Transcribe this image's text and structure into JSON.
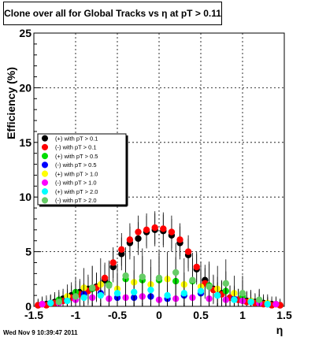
{
  "chart_data": {
    "type": "scatter",
    "title": "Clone  over all for Global Tracks vs η at pT > 0.11",
    "xlabel": "η",
    "ylabel": "Efficiency (%)",
    "xlim": [
      -1.5,
      1.5
    ],
    "ylim": [
      0,
      25
    ],
    "x_ticks": [
      "-1.5",
      "-1",
      "-0.5",
      "0",
      "0.5",
      "1",
      "1.5"
    ],
    "y_ticks": [
      "0",
      "5",
      "10",
      "15",
      "20",
      "25"
    ],
    "grid": true,
    "legend_position": "left",
    "series": [
      {
        "name": "(+) with pT > 0.1",
        "color": "#000000",
        "x": [
          -1.45,
          -1.35,
          -1.25,
          -1.15,
          -1.05,
          -0.95,
          -0.85,
          -0.75,
          -0.65,
          -0.55,
          -0.45,
          -0.35,
          -0.25,
          -0.15,
          -0.05,
          0.05,
          0.15,
          0.25,
          0.35,
          0.45,
          0.55,
          0.65,
          0.75,
          0.85,
          0.95,
          1.05,
          1.15,
          1.25,
          1.35,
          1.45
        ],
        "y": [
          0.1,
          0.2,
          0.4,
          0.7,
          1.0,
          1.3,
          1.6,
          1.8,
          2.4,
          3.6,
          4.8,
          5.8,
          6.2,
          6.8,
          7.0,
          6.9,
          6.5,
          5.8,
          4.7,
          3.4,
          2.4,
          1.6,
          1.2,
          0.8,
          0.6,
          0.5,
          0.4,
          0.3,
          0.2,
          0.1
        ],
        "err": [
          0.6,
          0.8,
          0.9,
          0.9,
          1.2,
          1.2,
          1.3,
          1.3,
          1.4,
          1.4,
          1.5,
          1.5,
          1.5,
          1.5,
          1.5,
          1.5,
          1.5,
          1.5,
          1.5,
          1.4,
          1.4,
          1.3,
          1.2,
          1.1,
          1.0,
          0.9,
          0.8,
          0.8,
          0.7,
          0.6
        ]
      },
      {
        "name": "(-) with pT > 0.1",
        "color": "#ff0000",
        "x": [
          -1.45,
          -1.35,
          -1.25,
          -1.15,
          -1.05,
          -0.95,
          -0.85,
          -0.75,
          -0.65,
          -0.55,
          -0.45,
          -0.35,
          -0.25,
          -0.15,
          -0.05,
          0.05,
          0.15,
          0.25,
          0.35,
          0.45,
          0.55,
          0.65,
          0.75,
          0.85,
          0.95,
          1.05,
          1.15,
          1.25,
          1.35,
          1.45
        ],
        "y": [
          0.1,
          0.1,
          0.3,
          0.5,
          0.8,
          1.1,
          1.4,
          1.7,
          2.6,
          4.0,
          5.2,
          6.1,
          6.8,
          7.0,
          7.2,
          7.1,
          6.8,
          6.1,
          5.0,
          3.6,
          2.1,
          1.5,
          1.1,
          0.8,
          0.6,
          0.4,
          0.3,
          0.2,
          0.1,
          0.1
        ],
        "err": [
          0.5,
          0.7,
          0.8,
          0.9,
          1.1,
          1.2,
          1.3,
          1.3,
          1.4,
          1.4,
          1.5,
          1.5,
          1.5,
          1.5,
          1.5,
          1.5,
          1.5,
          1.5,
          1.5,
          1.4,
          1.4,
          1.3,
          1.2,
          1.1,
          1.0,
          0.9,
          0.8,
          0.7,
          0.6,
          0.5
        ]
      },
      {
        "name": "(+) with pT > 0.5",
        "color": "#00dd00",
        "x": [
          -1.4,
          -1.2,
          -1.0,
          -0.8,
          -0.6,
          -0.4,
          -0.2,
          0.0,
          0.2,
          0.4,
          0.6,
          0.8,
          1.0,
          1.2,
          1.4
        ],
        "y": [
          0.2,
          0.6,
          1.3,
          1.6,
          2.0,
          2.5,
          2.4,
          2.4,
          2.3,
          2.3,
          1.9,
          1.4,
          0.9,
          0.5,
          0.2
        ],
        "err": [
          0.7,
          0.9,
          1.4,
          2.1,
          2.0,
          2.2,
          2.2,
          2.2,
          2.2,
          2.1,
          2.0,
          1.8,
          1.5,
          1.0,
          0.7
        ]
      },
      {
        "name": "(-) with pT > 0.5",
        "color": "#0000ff",
        "x": [
          -1.3,
          -1.1,
          -0.9,
          -0.7,
          -0.5,
          -0.3,
          -0.1,
          0.1,
          0.3,
          0.5,
          0.7,
          0.9,
          1.1,
          1.3
        ],
        "y": [
          0.3,
          0.7,
          1.1,
          1.2,
          0.8,
          0.8,
          0.9,
          0.7,
          1.0,
          1.2,
          1.0,
          0.7,
          0.5,
          0.2
        ],
        "err": [
          0.7,
          0.9,
          1.0,
          1.2,
          1.2,
          1.3,
          1.3,
          1.3,
          1.3,
          1.3,
          1.2,
          1.1,
          0.9,
          0.7
        ]
      },
      {
        "name": "(+) with pT > 1.0",
        "color": "#ffff00",
        "x": [
          -1.3,
          -1.1,
          -0.9,
          -0.7,
          -0.5,
          -0.3,
          -0.1,
          0.1,
          0.3,
          0.5,
          0.7,
          0.9,
          1.1,
          1.3
        ],
        "y": [
          0.3,
          0.9,
          1.7,
          2.0,
          1.6,
          2.2,
          2.0,
          2.5,
          2.0,
          1.8,
          1.6,
          1.2,
          0.5,
          0.3
        ],
        "err": [
          0.8,
          1.1,
          1.8,
          2.4,
          2.3,
          2.4,
          2.3,
          2.5,
          2.4,
          2.3,
          2.1,
          1.6,
          1.0,
          0.8
        ]
      },
      {
        "name": "(-) with pT > 1.0",
        "color": "#ff00ff",
        "x": [
          -1.4,
          -1.2,
          -1.0,
          -0.8,
          -0.6,
          -0.4,
          -0.2,
          0.0,
          0.2,
          0.4,
          0.6,
          0.8,
          1.0,
          1.2,
          1.4
        ],
        "y": [
          0.2,
          0.3,
          0.6,
          0.8,
          0.7,
          0.8,
          0.9,
          0.6,
          0.7,
          0.8,
          0.7,
          0.6,
          0.5,
          0.3,
          0.2
        ],
        "err": [
          0.6,
          0.7,
          1.0,
          1.2,
          1.3,
          1.3,
          1.4,
          1.4,
          1.4,
          1.3,
          1.3,
          1.2,
          1.0,
          0.8,
          0.6
        ]
      },
      {
        "name": "(+) with pT > 2.0",
        "color": "#00ffff",
        "x": [
          -1.3,
          -1.1,
          -0.9,
          -0.7,
          -0.5,
          -0.3,
          -0.1,
          0.1,
          0.3,
          0.5,
          0.7,
          0.9,
          1.1,
          1.3
        ],
        "y": [
          0.3,
          0.5,
          0.8,
          1.0,
          1.2,
          1.3,
          1.5,
          1.0,
          1.2,
          1.4,
          1.0,
          0.6,
          0.4,
          0.2
        ],
        "err": [
          0.7,
          0.9,
          1.3,
          1.6,
          1.8,
          2.0,
          2.1,
          1.9,
          1.9,
          1.9,
          1.7,
          1.3,
          0.9,
          0.6
        ]
      },
      {
        "name": "(-) with pT > 2.0",
        "color": "#66cc66",
        "x": [
          -1.2,
          -1.0,
          -0.8,
          -0.6,
          -0.4,
          -0.2,
          0.0,
          0.2,
          0.4,
          0.6,
          0.8,
          1.0,
          1.2
        ],
        "y": [
          0.4,
          0.9,
          1.7,
          1.9,
          2.8,
          2.7,
          2.6,
          3.1,
          2.4,
          1.8,
          2.1,
          1.2,
          0.6
        ],
        "err": [
          0.9,
          1.2,
          2.0,
          2.3,
          2.6,
          2.6,
          2.6,
          2.7,
          2.5,
          2.3,
          2.2,
          1.6,
          1.0
        ]
      }
    ]
  },
  "footer": {
    "timestamp": "Wed Nov  9 10:39:47 2011"
  }
}
